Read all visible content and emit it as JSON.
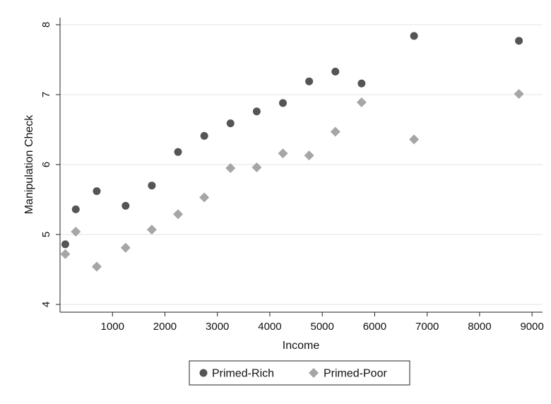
{
  "chart_data": {
    "type": "scatter",
    "title": "",
    "xlabel": "Income",
    "ylabel": "Manipulation Check",
    "xlim": [
      0,
      9200
    ],
    "ylim": [
      4,
      8
    ],
    "xticks": [
      1000,
      2000,
      3000,
      4000,
      5000,
      6000,
      7000,
      8000,
      9000
    ],
    "yticks": [
      4,
      5,
      6,
      7,
      8
    ],
    "grid": "horizontal",
    "legend": "bottom-center",
    "series": [
      {
        "name": "Primed-Rich",
        "marker": "circle",
        "color": "#555555",
        "x": [
          100,
          300,
          700,
          1250,
          1750,
          2250,
          2750,
          3250,
          3750,
          4250,
          4750,
          5250,
          5750,
          6750,
          8750
        ],
        "y": [
          4.86,
          5.36,
          5.62,
          5.41,
          5.7,
          6.18,
          6.41,
          6.59,
          6.76,
          6.88,
          7.19,
          7.33,
          7.16,
          7.84,
          7.77
        ]
      },
      {
        "name": "Primed-Poor",
        "marker": "diamond",
        "color": "#a6a6a6",
        "x": [
          100,
          300,
          700,
          1250,
          1750,
          2250,
          2750,
          3250,
          3750,
          4250,
          4750,
          5250,
          5750,
          6750,
          8750
        ],
        "y": [
          4.72,
          5.04,
          4.54,
          4.81,
          5.07,
          5.29,
          5.53,
          5.95,
          5.96,
          6.16,
          6.13,
          6.47,
          6.89,
          6.36,
          7.01
        ]
      }
    ]
  }
}
